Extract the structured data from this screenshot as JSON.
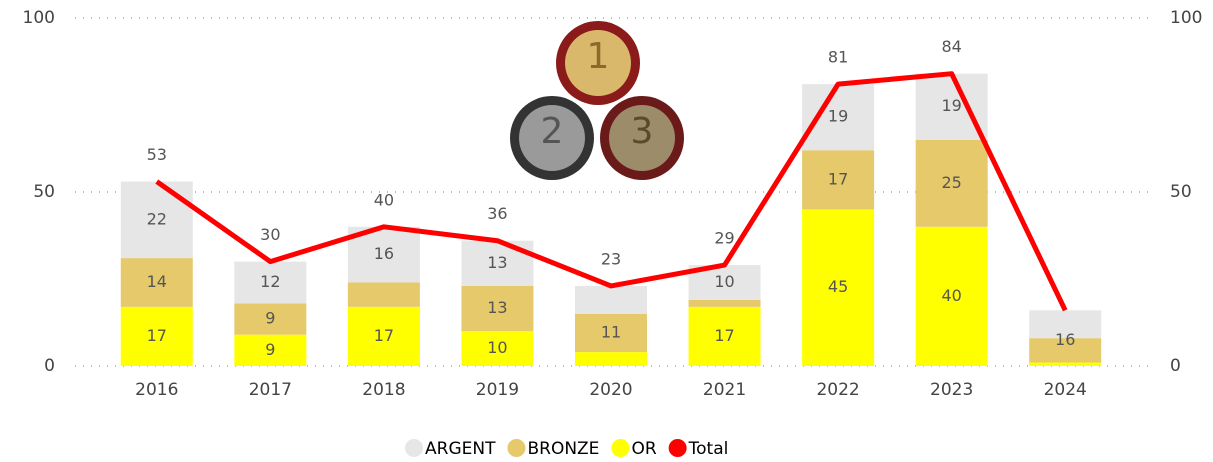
{
  "chart_data": {
    "type": "bar",
    "categories": [
      "2016",
      "2017",
      "2018",
      "2019",
      "2020",
      "2021",
      "2022",
      "2023",
      "2024"
    ],
    "series": [
      {
        "name": "ARGENT",
        "color": "#e6e6e6",
        "values": [
          22,
          12,
          16,
          13,
          8,
          10,
          19,
          19,
          8
        ]
      },
      {
        "name": "BRONZE",
        "color": "#e6c96a",
        "values": [
          14,
          9,
          7,
          13,
          11,
          2,
          17,
          25,
          7
        ]
      },
      {
        "name": "OR",
        "color": "#ffff00",
        "values": [
          17,
          9,
          17,
          10,
          4,
          17,
          45,
          40,
          1
        ]
      },
      {
        "name": "Total",
        "color": "#ff0000",
        "type": "line",
        "values": [
          53,
          30,
          40,
          36,
          23,
          29,
          81,
          84,
          16
        ]
      }
    ],
    "ylim": [
      0,
      100
    ],
    "yticks": [
      0,
      50,
      100
    ],
    "y2lim": [
      0,
      100
    ],
    "y2ticks": [
      0,
      50,
      100
    ],
    "grid": true,
    "legend": "bottom"
  }
}
